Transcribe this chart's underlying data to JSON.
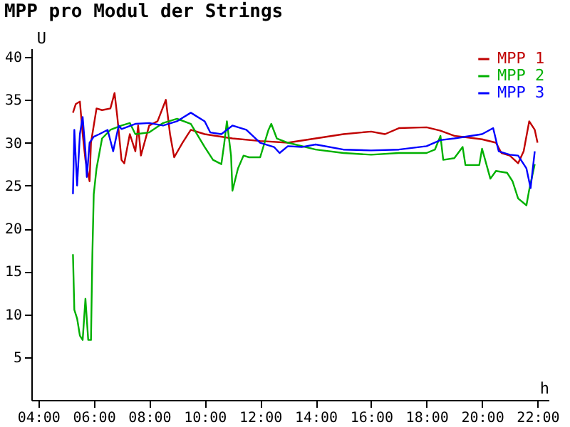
{
  "chart_data": {
    "type": "line",
    "title": "MPP pro Modul der Strings",
    "xlabel": "h",
    "ylabel": "U",
    "xlim": [
      3.75,
      22.4
    ],
    "ylim": [
      0,
      41
    ],
    "xticks": [
      {
        "value": 4,
        "label": "04:00"
      },
      {
        "value": 6,
        "label": "06:00"
      },
      {
        "value": 8,
        "label": "08:00"
      },
      {
        "value": 10,
        "label": "10:00"
      },
      {
        "value": 12,
        "label": "12:00"
      },
      {
        "value": 14,
        "label": "14:00"
      },
      {
        "value": 16,
        "label": "16:00"
      },
      {
        "value": 18,
        "label": "18:00"
      },
      {
        "value": 20,
        "label": "20:00"
      },
      {
        "value": 22,
        "label": "22:00"
      }
    ],
    "yticks": [
      5,
      10,
      15,
      20,
      25,
      30,
      35,
      40
    ],
    "grid": false,
    "legend": "top right",
    "series": [
      {
        "name": "MPP 1",
        "color": "#c00000",
        "x": [
          5.25,
          5.35,
          5.5,
          5.6,
          5.7,
          5.85,
          5.9,
          6.1,
          6.3,
          6.6,
          6.75,
          6.85,
          7.0,
          7.1,
          7.3,
          7.5,
          7.6,
          7.7,
          8.0,
          8.3,
          8.6,
          8.75,
          8.9,
          9.2,
          9.5,
          10.0,
          11.0,
          12.0,
          13.0,
          14.0,
          15.0,
          16.0,
          16.5,
          17.0,
          18.0,
          18.5,
          19.0,
          19.5,
          20.0,
          20.5,
          20.7,
          21.0,
          21.3,
          21.5,
          21.7,
          21.9,
          22.0
        ],
        "values": [
          33.5,
          34.5,
          34.8,
          31,
          28,
          25.5,
          30,
          34,
          33.8,
          34,
          35.8,
          33,
          28,
          27.6,
          31,
          29,
          32,
          28.5,
          32,
          32.5,
          35,
          31,
          28.3,
          30,
          31.5,
          31,
          30.5,
          30.2,
          30,
          30.5,
          31,
          31.3,
          31,
          31.7,
          31.8,
          31.4,
          30.8,
          30.6,
          30.4,
          30,
          28.8,
          28.5,
          27.6,
          29,
          32.5,
          31.5,
          30
        ]
      },
      {
        "name": "MPP 2",
        "color": "#00b000",
        "x": [
          5.25,
          5.3,
          5.4,
          5.5,
          5.6,
          5.7,
          5.8,
          5.9,
          5.95,
          6.0,
          6.1,
          6.3,
          6.6,
          7.0,
          7.3,
          7.5,
          8.0,
          8.5,
          9.0,
          9.5,
          10.0,
          10.3,
          10.6,
          10.7,
          10.8,
          10.95,
          11.0,
          11.2,
          11.4,
          11.6,
          12.0,
          12.3,
          12.4,
          12.6,
          13.0,
          14.0,
          15.0,
          16.0,
          17.0,
          18.0,
          18.3,
          18.5,
          18.6,
          19.0,
          19.3,
          19.4,
          19.9,
          20.0,
          20.3,
          20.5,
          20.9,
          21.1,
          21.3,
          21.6,
          21.7,
          21.9
        ],
        "values": [
          17,
          10.5,
          9.5,
          7.5,
          7,
          11.8,
          7,
          7,
          17,
          24,
          27,
          30.5,
          31.5,
          32,
          32.3,
          31,
          31.2,
          32.3,
          32.8,
          32.2,
          29.5,
          28,
          27.5,
          29.8,
          32.5,
          28.5,
          24.4,
          27,
          28.5,
          28.3,
          28.3,
          31.5,
          32.2,
          30.5,
          30,
          29.2,
          28.8,
          28.6,
          28.8,
          28.8,
          29.2,
          30.8,
          28,
          28.2,
          29.5,
          27.4,
          27.4,
          29.3,
          25.8,
          26.7,
          26.5,
          25.5,
          23.5,
          22.7,
          24.5,
          27.5
        ]
      },
      {
        "name": "MPP 3",
        "color": "#0000ff",
        "x": [
          5.25,
          5.3,
          5.4,
          5.5,
          5.6,
          5.7,
          5.75,
          5.85,
          6.0,
          6.2,
          6.5,
          6.7,
          6.9,
          7.0,
          7.5,
          8.0,
          8.5,
          9.0,
          9.5,
          10.0,
          10.2,
          10.6,
          11.0,
          11.5,
          12.0,
          12.5,
          12.7,
          13.0,
          13.5,
          14.0,
          15.0,
          16.0,
          17.0,
          18.0,
          18.5,
          19.0,
          20.0,
          20.4,
          20.6,
          21.0,
          21.3,
          21.6,
          21.75,
          21.9
        ],
        "values": [
          24,
          31.5,
          25,
          31,
          33,
          29,
          26,
          30,
          30.7,
          31,
          31.5,
          29,
          32,
          31.6,
          32.2,
          32.3,
          32,
          32.5,
          33.5,
          32.5,
          31.2,
          31,
          32,
          31.5,
          30,
          29.5,
          28.8,
          29.6,
          29.5,
          29.8,
          29.2,
          29.1,
          29.2,
          29.6,
          30.3,
          30.5,
          31,
          31.7,
          29,
          28.6,
          28.5,
          27,
          24.7,
          29
        ]
      }
    ]
  }
}
